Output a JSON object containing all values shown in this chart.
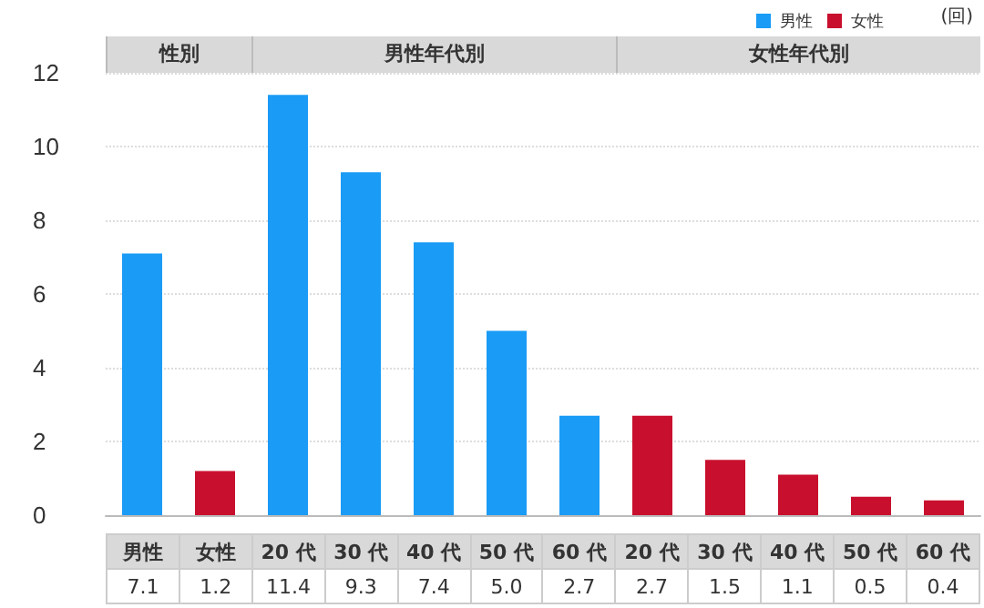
{
  "chart_data": {
    "type": "bar",
    "categories": [
      "男性",
      "女性",
      "20 代",
      "30 代",
      "40 代",
      "50 代",
      "60 代",
      "20 代",
      "30 代",
      "40 代",
      "50 代",
      "60 代"
    ],
    "series": [
      {
        "name": "男性",
        "color": "#1a9bf5",
        "values": [
          7.1,
          null,
          11.4,
          9.3,
          7.4,
          5.0,
          2.7,
          null,
          null,
          null,
          null,
          null
        ],
        "value_labels": [
          "7.1",
          null,
          "11.4",
          "9.3",
          "7.4",
          "5.0",
          "2.7",
          null,
          null,
          null,
          null,
          null
        ]
      },
      {
        "name": "女性",
        "color": "#c8102e",
        "values": [
          null,
          1.2,
          null,
          null,
          null,
          null,
          null,
          2.7,
          1.5,
          1.1,
          0.5,
          0.4
        ],
        "value_labels": [
          null,
          "1.2",
          null,
          null,
          null,
          null,
          null,
          "2.7",
          "1.5",
          "1.1",
          "0.5",
          "0.4"
        ]
      }
    ],
    "stacked": true,
    "ylim": [
      0,
      12
    ],
    "yticks": [
      0,
      2,
      4,
      6,
      8,
      10,
      12
    ],
    "grid": "y",
    "legend": "top right",
    "annotations": [
      "(回)",
      "性別",
      "男性年代別",
      "女性年代別"
    ]
  }
}
